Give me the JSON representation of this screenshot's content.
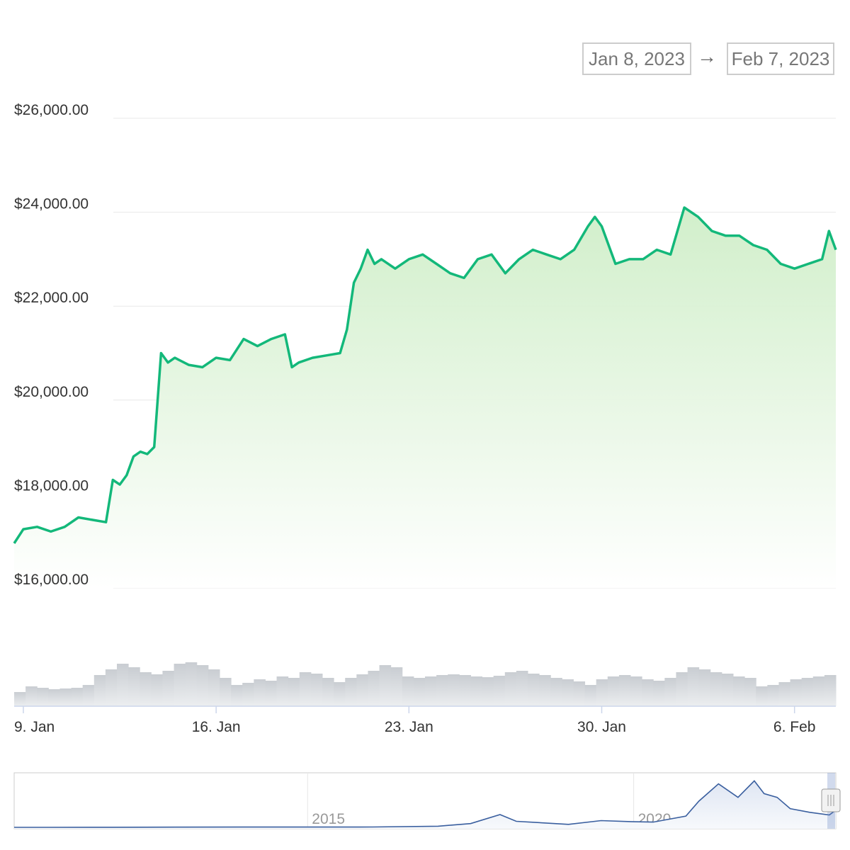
{
  "range": {
    "from": "Jan 8, 2023",
    "to": "Feb 7, 2023",
    "arrow": "→"
  },
  "colors": {
    "line": "#13b87a",
    "volume": "#c9cdd2",
    "navigator_line": "#3a5f9f",
    "grid": "#e8e8e8"
  },
  "chart_data": {
    "type": "area",
    "title": "",
    "xlabel": "",
    "ylabel": "",
    "ylim": [
      16000,
      26000
    ],
    "yticks": [
      16000,
      18000,
      20000,
      22000,
      24000,
      26000
    ],
    "ytick_labels": [
      "$16,000.00",
      "$18,000.00",
      "$20,000.00",
      "$22,000.00",
      "$24,000.00",
      "$26,000.00"
    ],
    "xlim": [
      "2023-01-08T16:00",
      "2023-02-07T12:00"
    ],
    "xticks": [
      "2023-01-09",
      "2023-01-16",
      "2023-01-23",
      "2023-01-30",
      "2023-02-06"
    ],
    "xtick_labels": [
      "9. Jan",
      "16. Jan",
      "23. Jan",
      "30. Jan",
      "6. Feb"
    ],
    "grid": true,
    "series": [
      {
        "x": [
          "2023-01-08T16:00",
          "2023-01-09T00:00",
          "2023-01-09T12:00",
          "2023-01-10T00:00",
          "2023-01-10T12:00",
          "2023-01-11T00:00",
          "2023-01-11T12:00",
          "2023-01-12T00:00",
          "2023-01-12T06:00",
          "2023-01-12T12:00",
          "2023-01-12T18:00",
          "2023-01-13T00:00",
          "2023-01-13T06:00",
          "2023-01-13T12:00",
          "2023-01-13T18:00",
          "2023-01-14T00:00",
          "2023-01-14T06:00",
          "2023-01-14T12:00",
          "2023-01-15T00:00",
          "2023-01-15T12:00",
          "2023-01-16T00:00",
          "2023-01-16T12:00",
          "2023-01-17T00:00",
          "2023-01-17T12:00",
          "2023-01-18T00:00",
          "2023-01-18T12:00",
          "2023-01-18T18:00",
          "2023-01-19T00:00",
          "2023-01-19T12:00",
          "2023-01-20T00:00",
          "2023-01-20T12:00",
          "2023-01-20T18:00",
          "2023-01-21T00:00",
          "2023-01-21T06:00",
          "2023-01-21T12:00",
          "2023-01-21T18:00",
          "2023-01-22T00:00",
          "2023-01-22T12:00",
          "2023-01-23T00:00",
          "2023-01-23T12:00",
          "2023-01-24T00:00",
          "2023-01-24T12:00",
          "2023-01-25T00:00",
          "2023-01-25T12:00",
          "2023-01-26T00:00",
          "2023-01-26T12:00",
          "2023-01-27T00:00",
          "2023-01-27T12:00",
          "2023-01-28T00:00",
          "2023-01-28T12:00",
          "2023-01-29T00:00",
          "2023-01-29T12:00",
          "2023-01-29T18:00",
          "2023-01-30T00:00",
          "2023-01-30T12:00",
          "2023-01-31T00:00",
          "2023-01-31T12:00",
          "2023-02-01T00:00",
          "2023-02-01T12:00",
          "2023-02-02T00:00",
          "2023-02-02T12:00",
          "2023-02-03T00:00",
          "2023-02-03T12:00",
          "2023-02-04T00:00",
          "2023-02-04T12:00",
          "2023-02-05T00:00",
          "2023-02-05T12:00",
          "2023-02-06T00:00",
          "2023-02-06T12:00",
          "2023-02-07T00:00",
          "2023-02-07T06:00",
          "2023-02-07T12:00"
        ],
        "y": [
          16950,
          17250,
          17300,
          17200,
          17300,
          17500,
          17450,
          17400,
          18300,
          18200,
          18400,
          18800,
          18900,
          18850,
          19000,
          21000,
          20800,
          20900,
          20750,
          20700,
          20900,
          20850,
          21300,
          21150,
          21300,
          21400,
          20700,
          20800,
          20900,
          20950,
          21000,
          21500,
          22500,
          22800,
          23200,
          22900,
          23000,
          22800,
          23000,
          23100,
          22900,
          22700,
          22600,
          23000,
          23100,
          22700,
          23000,
          23200,
          23100,
          23000,
          23200,
          23700,
          23900,
          23700,
          22900,
          23000,
          23000,
          23200,
          23100,
          24100,
          23900,
          23600,
          23500,
          23500,
          23300,
          23200,
          22900,
          22800,
          22900,
          23000,
          23600,
          23200
        ]
      }
    ],
    "volume": [
      20,
      28,
      26,
      24,
      25,
      26,
      30,
      44,
      52,
      60,
      55,
      48,
      45,
      50,
      60,
      62,
      58,
      52,
      40,
      30,
      33,
      38,
      36,
      42,
      40,
      48,
      46,
      40,
      34,
      40,
      45,
      50,
      58,
      55,
      42,
      40,
      42,
      44,
      45,
      44,
      42,
      41,
      43,
      48,
      50,
      46,
      44,
      40,
      38,
      35,
      30,
      38,
      42,
      44,
      42,
      38,
      36,
      40,
      48,
      55,
      52,
      48,
      46,
      42,
      40,
      28,
      30,
      34,
      38,
      40,
      42,
      44
    ],
    "navigator": {
      "xtick_labels": [
        "2015",
        "2020"
      ],
      "years": [
        2010.5,
        2011,
        2012,
        2013,
        2014,
        2015,
        2016,
        2017,
        2017.5,
        2017.95,
        2018.2,
        2018.5,
        2019,
        2019.5,
        2020,
        2020.3,
        2020.8,
        2021.0,
        2021.3,
        2021.6,
        2021.85,
        2022.0,
        2022.2,
        2022.4,
        2022.7,
        2023.0,
        2023.1
      ],
      "values": [
        0,
        0,
        100,
        300,
        400,
        400,
        500,
        1500,
        5000,
        17000,
        8000,
        6500,
        4000,
        9000,
        7500,
        7000,
        15000,
        35000,
        58000,
        40000,
        62000,
        45000,
        40000,
        25000,
        20000,
        16500,
        23000
      ]
    }
  }
}
